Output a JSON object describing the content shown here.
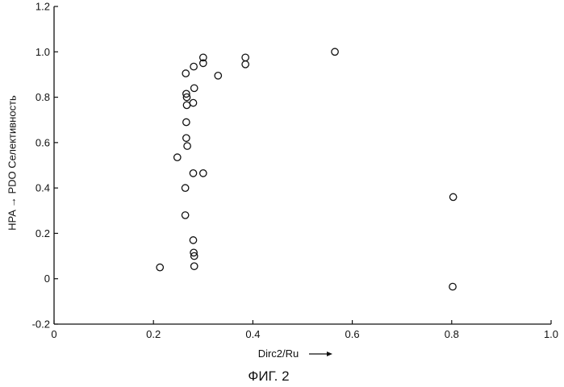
{
  "figure_caption": "ФИГ. 2",
  "chart_data": {
    "type": "scatter",
    "title": "",
    "xlabel": "Dirc2/Ru",
    "ylabel": "HPA → PDO  Селективность",
    "xlim": [
      0,
      1.0
    ],
    "ylim": [
      -0.2,
      1.2
    ],
    "x_ticks": [
      0,
      0.2,
      0.4,
      0.6,
      0.8,
      1.0
    ],
    "x_tick_labels": [
      "0",
      "0.2",
      "0.4",
      "0.6",
      "0.8",
      "1.0"
    ],
    "y_ticks": [
      -0.2,
      0,
      0.2,
      0.4,
      0.6,
      0.8,
      1.0,
      1.2
    ],
    "y_tick_labels": [
      "-0.2",
      "0",
      "0.2",
      "0.4",
      "0.6",
      "0.8",
      "1.0",
      "1.2"
    ],
    "grid": false,
    "legend": "none",
    "marker": "open-circle",
    "series": [
      {
        "points": [
          {
            "x": 0.213,
            "y": 0.05
          },
          {
            "x": 0.248,
            "y": 0.535
          },
          {
            "x": 0.265,
            "y": 0.905
          },
          {
            "x": 0.266,
            "y": 0.815
          },
          {
            "x": 0.267,
            "y": 0.8
          },
          {
            "x": 0.267,
            "y": 0.765
          },
          {
            "x": 0.266,
            "y": 0.69
          },
          {
            "x": 0.266,
            "y": 0.62
          },
          {
            "x": 0.268,
            "y": 0.585
          },
          {
            "x": 0.264,
            "y": 0.4
          },
          {
            "x": 0.264,
            "y": 0.28
          },
          {
            "x": 0.281,
            "y": 0.935
          },
          {
            "x": 0.282,
            "y": 0.84
          },
          {
            "x": 0.28,
            "y": 0.775
          },
          {
            "x": 0.28,
            "y": 0.465
          },
          {
            "x": 0.28,
            "y": 0.17
          },
          {
            "x": 0.281,
            "y": 0.115
          },
          {
            "x": 0.282,
            "y": 0.1
          },
          {
            "x": 0.282,
            "y": 0.055
          },
          {
            "x": 0.3,
            "y": 0.975
          },
          {
            "x": 0.3,
            "y": 0.95
          },
          {
            "x": 0.3,
            "y": 0.465
          },
          {
            "x": 0.33,
            "y": 0.895
          },
          {
            "x": 0.385,
            "y": 0.975
          },
          {
            "x": 0.385,
            "y": 0.945
          },
          {
            "x": 0.565,
            "y": 1.0
          },
          {
            "x": 0.803,
            "y": 0.36
          },
          {
            "x": 0.802,
            "y": -0.035
          }
        ]
      }
    ]
  }
}
